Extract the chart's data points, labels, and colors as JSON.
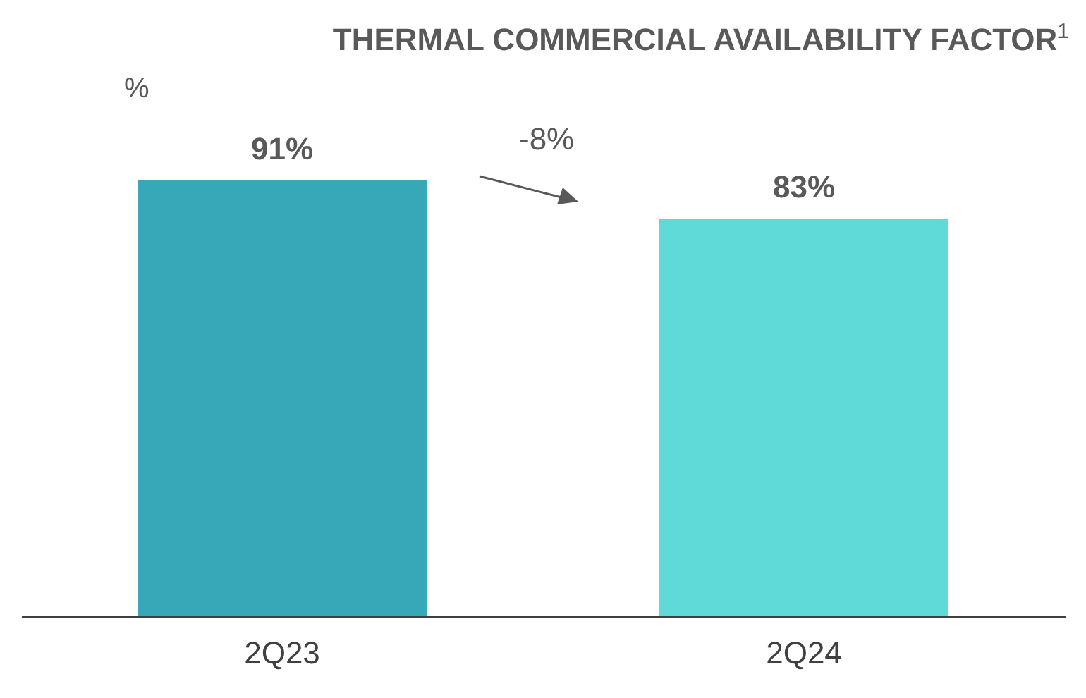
{
  "chart_data": {
    "type": "bar",
    "title": "THERMAL COMMERCIAL AVAILABILITY FACTOR$^{1}$",
    "ylabel": "%",
    "categories": [
      "2Q23",
      "2Q24"
    ],
    "values": [
      91,
      83
    ],
    "colors": [
      "#37a8b8",
      "#60d9d9"
    ],
    "value_labels": [
      "91%",
      "83%"
    ],
    "annotations": [
      "-8%"
    ]
  }
}
